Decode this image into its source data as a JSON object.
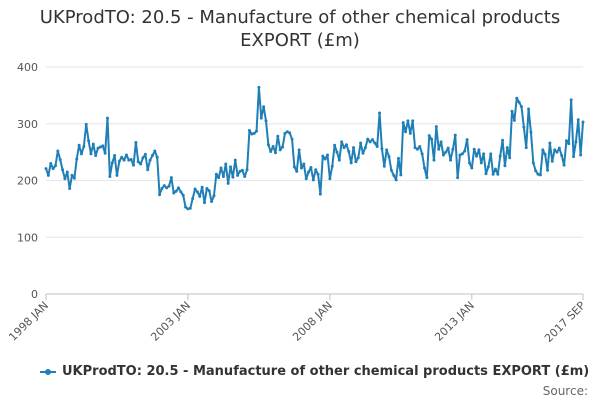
{
  "chart_data": {
    "type": "line",
    "title_line1": "UKProdTO: 20.5 - Manufacture of other chemical products",
    "title_line2": "EXPORT (£m)",
    "xlabel": "",
    "ylabel": "",
    "ylim": [
      0,
      400
    ],
    "yticks": [
      "0",
      "100",
      "200",
      "300",
      "400"
    ],
    "xticks": [
      "1998 JAN",
      "2003 JAN",
      "2008 JAN",
      "2013 JAN",
      "2017 SEP"
    ],
    "x_start": "1998 JAN",
    "x_end": "2017 SEP",
    "legend_position": "bottom",
    "series": [
      {
        "name": "UKProdTO: 20.5 - Manufacture of other chemical products EXPORT (£m)",
        "color": "#1f7fb6",
        "values": [
          221,
          209,
          230,
          221,
          226,
          252,
          237,
          219,
          203,
          215,
          186,
          209,
          204,
          238,
          262,
          247,
          260,
          299,
          270,
          247,
          264,
          244,
          257,
          259,
          261,
          248,
          310,
          207,
          231,
          244,
          209,
          234,
          241,
          236,
          245,
          236,
          237,
          227,
          267,
          233,
          229,
          240,
          246,
          219,
          236,
          244,
          252,
          241,
          175,
          186,
          191,
          187,
          190,
          205,
          178,
          181,
          187,
          180,
          174,
          153,
          150,
          151,
          168,
          185,
          180,
          172,
          188,
          161,
          186,
          182,
          163,
          173,
          211,
          205,
          222,
          207,
          229,
          195,
          224,
          206,
          236,
          209,
          216,
          218,
          207,
          219,
          288,
          282,
          283,
          287,
          364,
          310,
          330,
          305,
          263,
          251,
          260,
          249,
          278,
          254,
          259,
          283,
          286,
          284,
          273,
          224,
          216,
          254,
          222,
          229,
          203,
          215,
          223,
          201,
          219,
          211,
          176,
          243,
          238,
          245,
          203,
          225,
          262,
          250,
          236,
          268,
          258,
          263,
          251,
          231,
          258,
          233,
          240,
          266,
          248,
          258,
          273,
          268,
          272,
          266,
          260,
          319,
          256,
          225,
          254,
          242,
          218,
          209,
          201,
          239,
          210,
          302,
          286,
          305,
          283,
          305,
          258,
          255,
          260,
          247,
          222,
          205,
          279,
          273,
          236,
          295,
          255,
          268,
          245,
          250,
          257,
          236,
          255,
          280,
          205,
          245,
          247,
          252,
          272,
          231,
          222,
          255,
          243,
          254,
          231,
          247,
          212,
          224,
          247,
          211,
          220,
          211,
          243,
          271,
          226,
          258,
          240,
          322,
          306,
          345,
          338,
          330,
          294,
          258,
          326,
          285,
          231,
          217,
          211,
          210,
          254,
          246,
          218,
          266,
          234,
          254,
          250,
          257,
          244,
          227,
          270,
          265,
          342,
          242,
          268,
          307,
          245,
          303
        ]
      }
    ]
  },
  "legend": {
    "label": "UKProdTO: 20.5 - Manufacture of other chemical products EXPORT (£m)"
  },
  "source_label": "Source:"
}
